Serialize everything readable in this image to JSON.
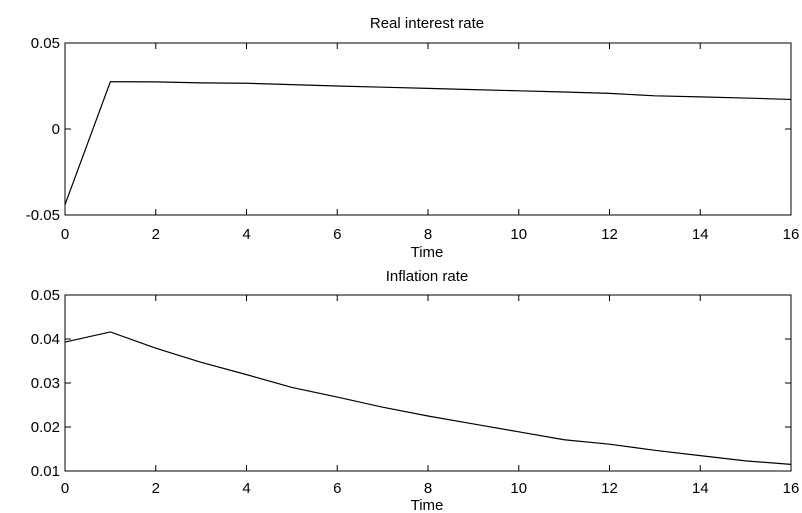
{
  "chart_data": [
    {
      "type": "line",
      "title": "Real interest rate",
      "xlabel": "Time",
      "ylabel": "",
      "xlim": [
        0,
        16
      ],
      "ylim": [
        -0.05,
        0.05
      ],
      "xticks": [
        0,
        2,
        4,
        6,
        8,
        10,
        12,
        14,
        16
      ],
      "xtick_labels": [
        "0",
        "2",
        "4",
        "6",
        "8",
        "10",
        "12",
        "14",
        "16"
      ],
      "yticks": [
        -0.05,
        0,
        0.05
      ],
      "ytick_labels": [
        "-0.05",
        "0",
        "0.05"
      ],
      "grid": false,
      "series": [
        {
          "x": [
            0,
            1,
            2,
            3,
            4,
            5,
            6,
            7,
            8,
            9,
            10,
            11,
            12,
            13,
            14,
            15,
            16
          ],
          "values": [
            -0.044,
            0.0275,
            0.0274,
            0.0268,
            0.0266,
            0.0258,
            0.025,
            0.0243,
            0.0236,
            0.0229,
            0.0222,
            0.0215,
            0.0207,
            0.0193,
            0.0187,
            0.018,
            0.0172
          ]
        }
      ]
    },
    {
      "type": "line",
      "title": "Inflation rate",
      "xlabel": "Time",
      "ylabel": "",
      "xlim": [
        0,
        16
      ],
      "ylim": [
        0.01,
        0.05
      ],
      "xticks": [
        0,
        2,
        4,
        6,
        8,
        10,
        12,
        14,
        16
      ],
      "xtick_labels": [
        "0",
        "2",
        "4",
        "6",
        "8",
        "10",
        "12",
        "14",
        "16"
      ],
      "yticks": [
        0.01,
        0.02,
        0.03,
        0.04,
        0.05
      ],
      "ytick_labels": [
        "0.01",
        "0.02",
        "0.03",
        "0.04",
        "0.05"
      ],
      "grid": false,
      "series": [
        {
          "x": [
            0,
            1,
            2,
            3,
            4,
            5,
            6,
            7,
            8,
            9,
            10,
            11,
            12,
            13,
            14,
            15,
            16
          ],
          "values": [
            0.0393,
            0.0416,
            0.0379,
            0.0347,
            0.0319,
            0.029,
            0.0268,
            0.0245,
            0.0225,
            0.0207,
            0.0189,
            0.0171,
            0.0161,
            0.0147,
            0.0135,
            0.0123,
            0.0115
          ]
        }
      ]
    }
  ]
}
